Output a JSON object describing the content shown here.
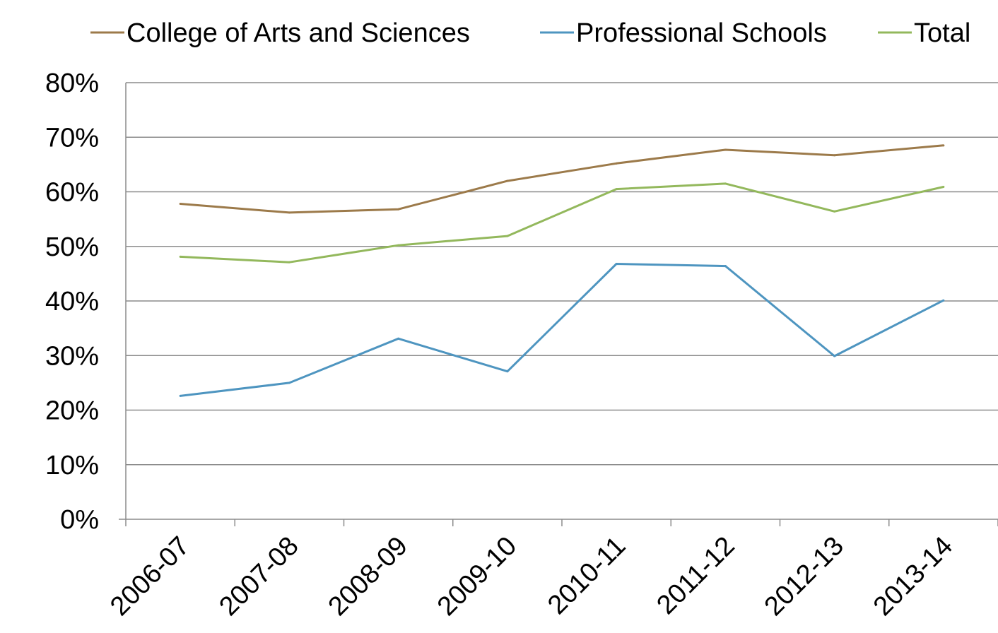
{
  "chart_data": {
    "type": "line",
    "title": "",
    "xlabel": "",
    "ylabel": "",
    "categories": [
      "2006-07",
      "2007-08",
      "2008-09",
      "2009-10",
      "2010-11",
      "2011-12",
      "2012-13",
      "2013-14"
    ],
    "ylim": [
      0,
      80
    ],
    "y_ticks": [
      "0%",
      "10%",
      "20%",
      "30%",
      "40%",
      "50%",
      "60%",
      "70%",
      "80%"
    ],
    "grid": "horizontal",
    "legend_position": "top",
    "series": [
      {
        "name": "College of Arts and Sciences",
        "color": "#9c7a4a",
        "values": [
          57.8,
          56.2,
          56.8,
          62.0,
          65.2,
          67.7,
          66.7,
          68.5
        ]
      },
      {
        "name": "Professional Schools",
        "color": "#4e95c0",
        "values": [
          22.6,
          25.0,
          33.1,
          27.1,
          46.8,
          46.4,
          29.9,
          40.1
        ]
      },
      {
        "name": "Total",
        "color": "#93b85c",
        "values": [
          48.1,
          47.1,
          50.2,
          51.9,
          60.5,
          61.5,
          56.4,
          60.9
        ]
      }
    ]
  }
}
